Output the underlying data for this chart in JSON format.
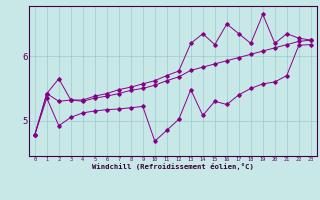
{
  "xlabel": "Windchill (Refroidissement éolien,°C)",
  "bg_color": "#c8e8e8",
  "line_color": "#880088",
  "grid_color": "#99cccc",
  "xlim_min": -0.5,
  "xlim_max": 23.5,
  "ylim_min": 4.45,
  "ylim_max": 6.78,
  "xticks": [
    0,
    1,
    2,
    3,
    4,
    5,
    6,
    7,
    8,
    9,
    10,
    11,
    12,
    13,
    14,
    15,
    16,
    17,
    18,
    19,
    20,
    21,
    22,
    23
  ],
  "yticks": [
    5,
    6
  ],
  "hours": [
    0,
    1,
    2,
    3,
    4,
    5,
    6,
    7,
    8,
    9,
    10,
    11,
    12,
    13,
    14,
    15,
    16,
    17,
    18,
    19,
    20,
    21,
    22,
    23
  ],
  "line1": [
    4.78,
    5.35,
    4.92,
    5.05,
    5.12,
    5.15,
    5.17,
    5.18,
    5.2,
    5.22,
    4.68,
    4.85,
    5.02,
    5.48,
    5.08,
    5.3,
    5.25,
    5.4,
    5.5,
    5.57,
    5.6,
    5.7,
    6.17,
    6.18
  ],
  "line2": [
    4.78,
    5.42,
    5.3,
    5.32,
    5.3,
    5.35,
    5.38,
    5.42,
    5.47,
    5.5,
    5.55,
    5.62,
    5.68,
    5.78,
    5.83,
    5.88,
    5.93,
    5.98,
    6.03,
    6.08,
    6.13,
    6.18,
    6.23,
    6.25
  ],
  "line3": [
    4.78,
    5.42,
    5.65,
    5.32,
    5.32,
    5.38,
    5.42,
    5.48,
    5.52,
    5.57,
    5.62,
    5.7,
    5.77,
    6.2,
    6.35,
    6.18,
    6.5,
    6.35,
    6.2,
    6.65,
    6.2,
    6.35,
    6.28,
    6.25
  ]
}
